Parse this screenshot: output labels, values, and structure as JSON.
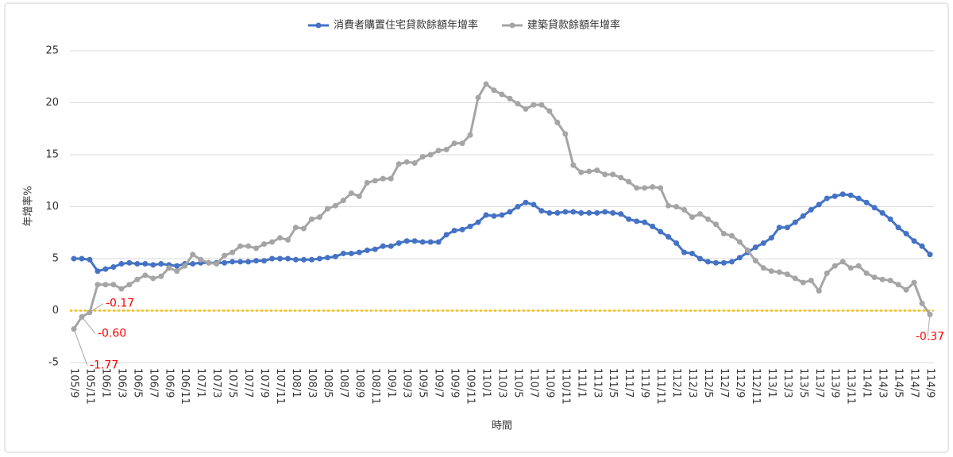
{
  "chart_data": {
    "type": "line",
    "x_label": "時間",
    "y_label": "年增率%",
    "categories": [
      "105/9",
      null,
      "105/11",
      null,
      "106/1",
      null,
      "106/3",
      null,
      "106/5",
      null,
      "106/7",
      null,
      "106/9",
      null,
      "106/11",
      null,
      "107/1",
      null,
      "107/3",
      null,
      "107/5",
      null,
      "107/7",
      null,
      "107/9",
      null,
      "107/11",
      null,
      "108/1",
      null,
      "108/3",
      null,
      "108/5",
      null,
      "108/7",
      null,
      "108/9",
      null,
      "108/11",
      null,
      "109/1",
      null,
      "109/3",
      null,
      "109/5",
      null,
      "109/7",
      null,
      "109/9",
      null,
      "109/11",
      null,
      "110/1",
      null,
      "110/3",
      null,
      "110/5",
      null,
      "110/7",
      null,
      "110/9",
      null,
      "110/11",
      null,
      "111/1",
      null,
      "111/3",
      null,
      "111/5",
      null,
      "111/7",
      null,
      "111/9",
      null,
      "111/11",
      null,
      "112/1",
      null,
      "112/3",
      null,
      "112/5",
      null,
      "112/7",
      null,
      "112/9",
      null,
      "112/11",
      null,
      "113/1",
      null,
      "113/3",
      null,
      "113/5",
      null,
      "113/7",
      null,
      "113/9",
      null,
      "113/11",
      null,
      "114/1",
      null,
      "114/3",
      null,
      "114/5",
      null,
      "114/7",
      null,
      "114/9"
    ],
    "series": [
      {
        "name": "消費者購置住宅貸款餘額年增率",
        "color": "#4472C4",
        "values": [
          5.0,
          5.0,
          4.9,
          3.8,
          4.0,
          4.2,
          4.5,
          4.6,
          4.5,
          4.5,
          4.4,
          4.5,
          4.4,
          4.3,
          4.5,
          4.5,
          4.6,
          4.6,
          4.6,
          4.6,
          4.7,
          4.7,
          4.7,
          4.8,
          4.8,
          5.0,
          5.0,
          5.0,
          4.9,
          4.9,
          4.9,
          5.0,
          5.1,
          5.2,
          5.5,
          5.5,
          5.6,
          5.8,
          5.9,
          6.2,
          6.2,
          6.5,
          6.7,
          6.7,
          6.6,
          6.6,
          6.6,
          7.3,
          7.7,
          7.8,
          8.1,
          8.5,
          9.2,
          9.1,
          9.2,
          9.5,
          10.0,
          10.4,
          10.2,
          9.6,
          9.4,
          9.4,
          9.5,
          9.5,
          9.4,
          9.4,
          9.4,
          9.5,
          9.4,
          9.3,
          8.8,
          8.6,
          8.5,
          8.1,
          7.6,
          7.1,
          6.5,
          5.6,
          5.5,
          5.0,
          4.7,
          4.6,
          4.6,
          4.7,
          5.1,
          5.6,
          6.1,
          6.5,
          7.0,
          8.0,
          8.0,
          8.5,
          9.1,
          9.7,
          10.2,
          10.8,
          11.0,
          11.2,
          11.1,
          10.8,
          10.4,
          9.9,
          9.4,
          8.8,
          8.0,
          7.4,
          6.7,
          6.2,
          5.4
        ]
      },
      {
        "name": "建築貸款餘額年增率",
        "color": "#A5A5A5",
        "values": [
          -1.77,
          -0.6,
          -0.17,
          2.5,
          2.5,
          2.5,
          2.1,
          2.5,
          3.0,
          3.4,
          3.1,
          3.3,
          4.1,
          3.8,
          4.3,
          5.4,
          4.9,
          4.6,
          4.5,
          5.3,
          5.6,
          6.2,
          6.2,
          6.0,
          6.4,
          6.6,
          7.0,
          6.8,
          8.0,
          7.9,
          8.8,
          9.0,
          9.8,
          10.1,
          10.6,
          11.3,
          11.0,
          12.3,
          12.5,
          12.7,
          12.7,
          14.1,
          14.3,
          14.2,
          14.8,
          15.0,
          15.4,
          15.5,
          16.1,
          16.1,
          16.9,
          20.5,
          21.8,
          21.2,
          20.8,
          20.4,
          19.9,
          19.4,
          19.8,
          19.8,
          19.2,
          18.1,
          17.0,
          14.0,
          13.3,
          13.4,
          13.5,
          13.1,
          13.1,
          12.8,
          12.4,
          11.8,
          11.8,
          11.9,
          11.8,
          10.1,
          10.0,
          9.7,
          9.0,
          9.3,
          8.8,
          8.3,
          7.4,
          7.2,
          6.6,
          5.8,
          4.8,
          4.1,
          3.8,
          3.7,
          3.5,
          3.1,
          2.7,
          2.9,
          1.9,
          3.6,
          4.3,
          4.7,
          4.1,
          4.3,
          3.6,
          3.2,
          3.0,
          2.9,
          2.5,
          2.0,
          2.7,
          0.7,
          -0.37
        ],
        "value_labels": [
          "-1.77",
          "-0.60",
          "-0.17",
          null,
          null,
          null,
          null,
          null,
          null,
          null,
          null,
          null,
          null,
          null,
          null,
          null,
          null,
          null,
          null,
          null,
          null,
          null,
          null,
          null,
          null,
          null,
          null,
          null,
          null,
          null,
          null,
          null,
          null,
          null,
          null,
          null,
          null,
          null,
          null,
          null,
          null,
          null,
          null,
          null,
          null,
          null,
          null,
          null,
          null,
          null,
          null,
          null,
          null,
          null,
          null,
          null,
          null,
          null,
          null,
          null,
          null,
          null,
          null,
          null,
          null,
          null,
          null,
          null,
          null,
          null,
          null,
          null,
          null,
          null,
          null,
          null,
          null,
          null,
          null,
          null,
          null,
          null,
          null,
          null,
          null,
          null,
          null,
          null,
          null,
          null,
          null,
          null,
          null,
          null,
          null,
          null,
          null,
          null,
          null,
          null,
          null,
          null,
          null,
          null,
          null,
          null,
          null,
          null,
          "-0.37"
        ],
        "value_label_color": "#FF0000"
      }
    ],
    "ylim": [
      -5,
      25
    ],
    "yticks": [
      -5,
      0,
      5,
      10,
      15,
      20,
      25
    ],
    "grid": true,
    "reference_line": {
      "value": 0,
      "color": "#FFC000"
    },
    "legend": "top"
  }
}
